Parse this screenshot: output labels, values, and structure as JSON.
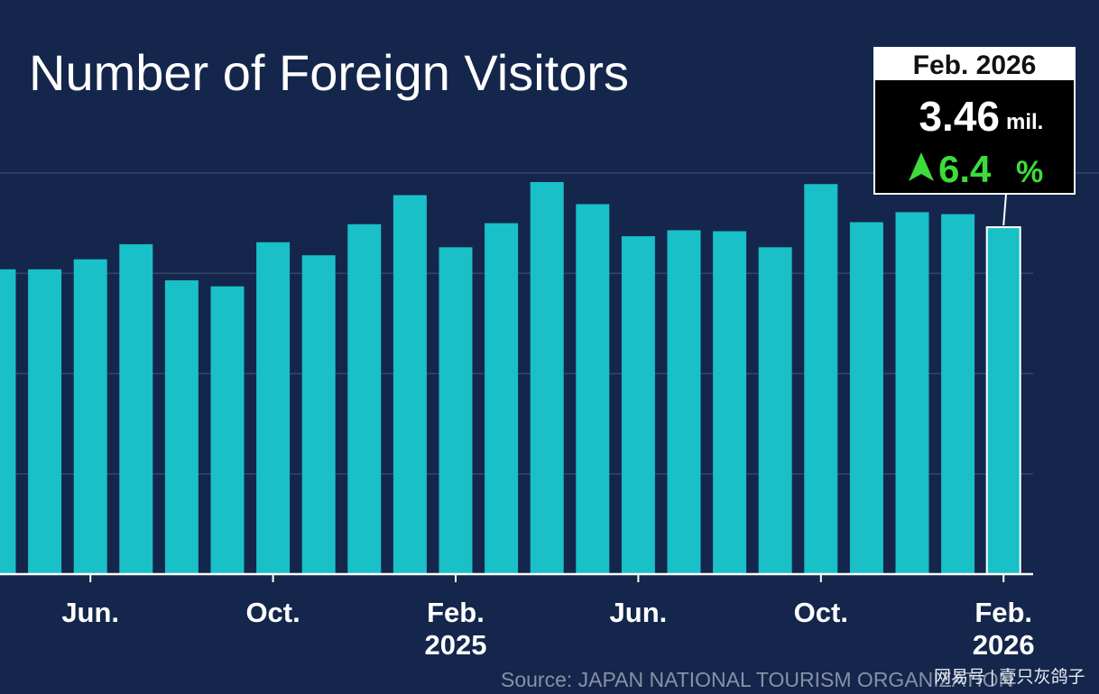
{
  "chart_data": {
    "type": "bar",
    "title": "Number of Foreign Visitors",
    "categories": [
      null,
      null,
      "Jun.",
      null,
      null,
      null,
      "Oct.",
      null,
      null,
      null,
      "Feb.\n2025",
      null,
      null,
      null,
      "Jun.",
      null,
      null,
      null,
      "Oct.",
      null,
      null,
      null,
      "Feb.\n2026"
    ],
    "values": [
      3.04,
      3.04,
      3.14,
      3.29,
      2.93,
      2.87,
      3.31,
      3.18,
      3.49,
      3.78,
      3.26,
      3.5,
      3.91,
      3.69,
      3.37,
      3.43,
      3.42,
      3.26,
      3.89,
      3.51,
      3.61,
      3.59,
      3.46
    ],
    "color": "#19c0c8",
    "ylim": [
      0,
      4
    ],
    "yticks": [
      1,
      2,
      3,
      4
    ],
    "grid": true,
    "callout": {
      "date": "Feb. 2026",
      "value": 3.46,
      "unit": "mil.",
      "change": 6.4,
      "change_unit": "%",
      "change_color": "#3ddc3a"
    },
    "source": "Source: JAPAN NATIONAL TOURISM ORGANIZATION",
    "watermark": "网易号 | 壹只灰鸽子"
  }
}
